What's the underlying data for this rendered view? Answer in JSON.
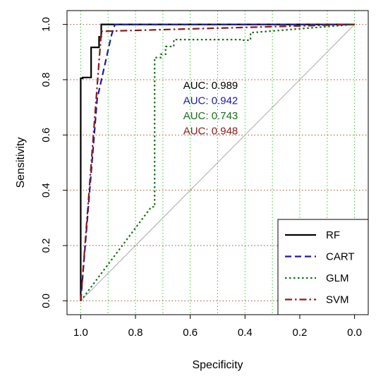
{
  "chart_data": {
    "type": "line",
    "xlabel": "Specificity",
    "ylabel": "Sensitivity",
    "xlim": [
      1.05,
      -0.05
    ],
    "ylim": [
      -0.05,
      1.05
    ],
    "x_reversed": true,
    "x_ticks": [
      1.0,
      0.8,
      0.6,
      0.4,
      0.2,
      0.0
    ],
    "x_tick_labels": [
      "1.0",
      "0.8",
      "0.6",
      "0.4",
      "0.2",
      "0.0"
    ],
    "y_ticks": [
      0.0,
      0.2,
      0.4,
      0.6,
      0.8,
      1.0
    ],
    "y_tick_labels": [
      "0.0",
      "0.2",
      "0.4",
      "0.6",
      "0.8",
      "1.0"
    ],
    "grid": {
      "vertical": true,
      "vertical_color": "#33cc33",
      "vertical_at": [
        1.0,
        0.9,
        0.8,
        0.7,
        0.6,
        0.5,
        0.4,
        0.3,
        0.2,
        0.1,
        0.0
      ],
      "horizontal": true,
      "horizontal_color": "#a0522d",
      "horizontal_at": [
        0.0,
        0.2,
        0.4,
        0.6,
        0.8,
        1.0
      ]
    },
    "reference_line": {
      "from": [
        1,
        0
      ],
      "to": [
        0,
        1
      ],
      "color": "#aaaaaa"
    },
    "series": [
      {
        "name": "RF",
        "color": "#000000",
        "dash": "solid",
        "x": [
          1.0,
          1.0,
          0.993,
          0.993,
          0.962,
          0.962,
          0.933,
          0.933,
          0.925,
          0.925,
          0.0
        ],
        "y": [
          0.0,
          0.805,
          0.805,
          0.808,
          0.808,
          0.917,
          0.917,
          0.955,
          0.955,
          1.0,
          1.0
        ]
      },
      {
        "name": "CART",
        "color": "#1a1aa6",
        "dash": "dashed",
        "x": [
          1.0,
          0.94,
          0.888,
          0.875,
          0.0
        ],
        "y": [
          0.0,
          0.73,
          0.96,
          1.0,
          1.0
        ]
      },
      {
        "name": "GLM",
        "color": "#1a6e1a",
        "dash": "dotted",
        "x": [
          1.0,
          0.742,
          0.742,
          0.73,
          0.73,
          0.708,
          0.708,
          0.69,
          0.69,
          0.66,
          0.66,
          0.41,
          0.41,
          0.38,
          0.38,
          0.0
        ],
        "y": [
          0.0,
          0.34,
          0.34,
          0.34,
          0.88,
          0.88,
          0.892,
          0.892,
          0.92,
          0.92,
          0.945,
          0.945,
          0.943,
          0.943,
          0.97,
          1.0
        ]
      },
      {
        "name": "SVM",
        "color": "#8b1a1a",
        "dash": "dashdot",
        "x": [
          1.0,
          0.925,
          0.925,
          0.0
        ],
        "y": [
          0.0,
          0.97,
          0.975,
          1.0
        ]
      }
    ],
    "annotations": [
      {
        "text": "AUC: 0.989",
        "color": "#000000"
      },
      {
        "text": "AUC: 0.942",
        "color": "#1a1aa6"
      },
      {
        "text": "AUC: 0.743",
        "color": "#1a6e1a"
      },
      {
        "text": "AUC: 0.948",
        "color": "#8b1a1a"
      }
    ],
    "legend_position": "bottom-right"
  }
}
